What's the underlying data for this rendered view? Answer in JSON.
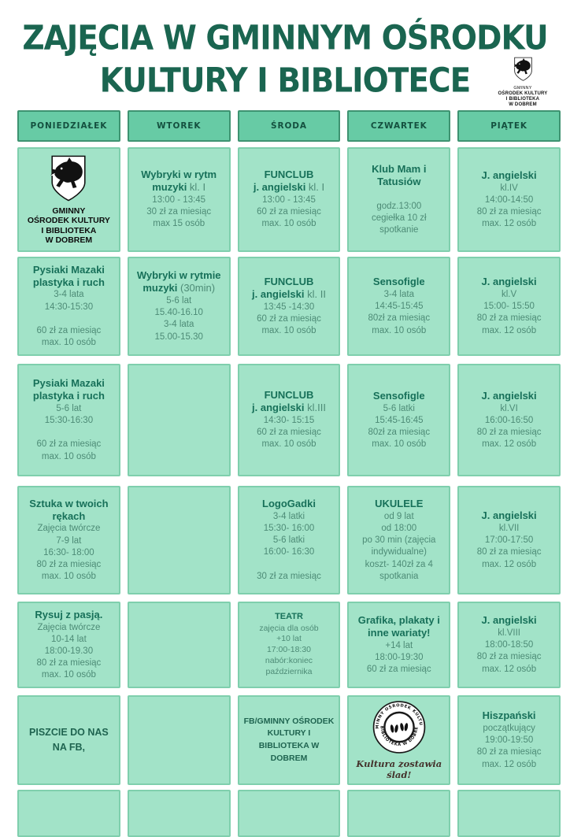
{
  "page": {
    "title_line1": "ZAJĘCIA W GMINNYM OŚRODKU",
    "title_line2": "KULTURY I BIBLIOTECE"
  },
  "org_logo": {
    "lines": [
      "GMINNY",
      "OŚRODEK KULTURY",
      "I BIBLIOTEKA",
      "W DOBREM"
    ]
  },
  "stamp": {
    "ring_top": "GMINNY OŚRODEK KULTURY",
    "ring_bottom": "I BIBLIOTEKA W DOBREM",
    "caption": "Kultura zostawia ślad!"
  },
  "colors": {
    "title_green": "#1a6550",
    "header_bg": "#67cba5",
    "header_border": "#3e9371",
    "cell_bg": "#a2e3c8",
    "cell_border": "#7fcfad",
    "cell_title_text": "#177059",
    "cell_body_text": "#4d8b76"
  },
  "schedule": {
    "days": [
      "PONIEDZIAŁEK",
      "WTOREK",
      "ŚRODA",
      "CZWARTEK",
      "PIĄTEK"
    ],
    "rows": [
      {
        "cells": [
          {
            "type": "logo"
          },
          {
            "type": "activity",
            "title": "Wybryki w rytm muzyki",
            "note": "kl. I",
            "lines": [
              "13:00 - 13:45",
              "30 zł za miesiąc",
              "max 15 osób"
            ]
          },
          {
            "type": "activity",
            "title": "FUNCLUB\nj. angielski",
            "note": "kl. I",
            "lines": [
              "13:00 - 13:45",
              "60 zł za miesiąc",
              "max. 10 osób"
            ]
          },
          {
            "type": "activity",
            "title": "Klub Mam i Tatusiów",
            "lines": [
              "",
              "godz.13:00",
              "cegiełka 10 zł",
              "spotkanie"
            ]
          },
          {
            "type": "activity",
            "title": "J. angielski",
            "lines": [
              "kl.IV",
              "14:00-14:50",
              "80 zł za miesiąc",
              "max. 12 osób"
            ]
          }
        ]
      },
      {
        "cells": [
          {
            "type": "activity",
            "title": "Pysiaki Mazaki plastyka i ruch",
            "lines": [
              "3-4 lata",
              "14:30-15:30",
              "",
              "60 zł za miesiąc",
              "max. 10 osób"
            ]
          },
          {
            "type": "activity",
            "title": "Wybryki w rytmie muzyki",
            "note": "(30min)",
            "lines": [
              "5-6 lat",
              "15.40-16.10",
              "3-4 lata",
              "15.00-15.30"
            ]
          },
          {
            "type": "activity",
            "title": "FUNCLUB\nj. angielski",
            "note": "kl. II",
            "lines": [
              "13:45 -14:30",
              "60 zł za miesiąc",
              "max. 10 osób"
            ]
          },
          {
            "type": "activity",
            "title": "Sensofigle",
            "lines": [
              "3-4 lata",
              "14:45-15:45",
              "80zł za miesiąc",
              "max. 10 osób"
            ]
          },
          {
            "type": "activity",
            "title": "J. angielski",
            "lines": [
              "kl.V",
              "15:00- 15:50",
              "80 zł za miesiąc",
              "max. 12 osób"
            ]
          }
        ]
      },
      {
        "cells": [
          {
            "type": "activity",
            "title": "Pysiaki Mazaki plastyka i ruch",
            "lines": [
              "5-6 lat",
              "15:30-16:30",
              "",
              "60 zł za miesiąc",
              "max. 10 osób"
            ]
          },
          {
            "type": "empty"
          },
          {
            "type": "activity",
            "title": "FUNCLUB\nj. angielski",
            "note": "kl.III",
            "lines": [
              "14:30- 15:15",
              "60 zł za miesiąc",
              "max. 10 osób"
            ]
          },
          {
            "type": "activity",
            "title": "Sensofigle",
            "lines": [
              "5-6 latki",
              "15:45-16:45",
              "80zł za miesiąc",
              "max. 10 osób"
            ]
          },
          {
            "type": "activity",
            "title": "J. angielski",
            "lines": [
              "kl.VI",
              "16:00-16:50",
              "80 zł za miesiąc",
              "max. 12 osób"
            ]
          }
        ]
      },
      {
        "cells": [
          {
            "type": "activity",
            "title": "Sztuka w twoich rękach",
            "lines": [
              "Zajęcia twórcze",
              "7-9 lat",
              "16:30- 18:00",
              "80 zł za miesiąc",
              "max. 10 osób"
            ]
          },
          {
            "type": "empty"
          },
          {
            "type": "activity",
            "title": "LogoGadki",
            "lines": [
              "3-4 latki",
              "15:30- 16:00",
              "5-6 latki",
              "16:00- 16:30",
              "",
              "30 zł za miesiąc"
            ]
          },
          {
            "type": "activity",
            "title": "UKULELE",
            "lines": [
              "od 9 lat",
              "od 18:00",
              "po 30 min (zajęcia",
              "indywidualne)",
              "koszt- 140zł za 4",
              "spotkania"
            ]
          },
          {
            "type": "activity",
            "title": "J. angielski",
            "lines": [
              "kl.VII",
              "17:00-17:50",
              "80 zł za miesiąc",
              "max. 12 osób"
            ]
          }
        ]
      },
      {
        "cells": [
          {
            "type": "activity",
            "title": "Rysuj z pasją.",
            "lines": [
              "Zajęcia twórcze",
              "10-14 lat",
              "18:00-19.30",
              "80 zł za miesiąc",
              "max. 10 osób"
            ]
          },
          {
            "type": "empty"
          },
          {
            "type": "activity",
            "small": true,
            "title": "TEATR",
            "lines": [
              "zajęcia dla osób",
              "+10 lat",
              "17:00-18:30",
              "nabór:koniec",
              "października"
            ]
          },
          {
            "type": "activity",
            "title": "Grafika, plakaty i inne wariaty!",
            "lines": [
              "+14 lat",
              "18:00-19:30",
              "60 zł za miesiąc"
            ]
          },
          {
            "type": "activity",
            "title": "J. angielski",
            "lines": [
              "kl.VIII",
              "18:00-18:50",
              "80 zł za miesiąc",
              "max. 12 osób"
            ]
          }
        ]
      },
      {
        "cells": [
          {
            "type": "note",
            "lines": [
              "PISZCIE DO NAS",
              "NA FB,"
            ]
          },
          {
            "type": "empty"
          },
          {
            "type": "note",
            "small": true,
            "lines": [
              "FB/GMINNY OŚRODEK",
              "KULTURY I",
              "BIBLIOTEKA W",
              "DOBREM"
            ]
          },
          {
            "type": "stamp"
          },
          {
            "type": "activity",
            "title": "Hiszpański",
            "lines": [
              "początkujący",
              "19:00-19:50",
              "80 zł za miesiąc",
              "max. 12 osób"
            ]
          }
        ]
      },
      {
        "cells": [
          {
            "type": "empty"
          },
          {
            "type": "empty"
          },
          {
            "type": "empty"
          },
          {
            "type": "empty"
          },
          {
            "type": "empty"
          }
        ]
      }
    ]
  }
}
